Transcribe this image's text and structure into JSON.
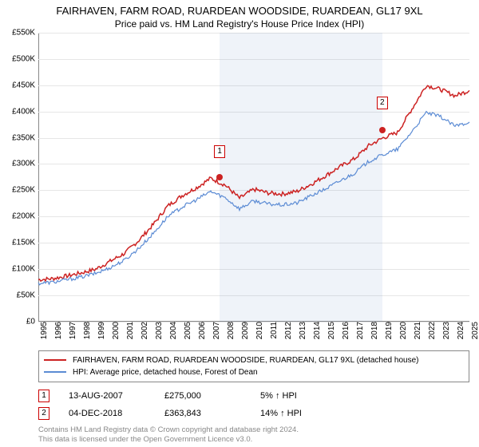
{
  "title_line1": "FAIRHAVEN, FARM ROAD, RUARDEAN WOODSIDE, RUARDEAN, GL17 9XL",
  "title_line2": "Price paid vs. HM Land Registry's House Price Index (HPI)",
  "chart": {
    "type": "line",
    "ylim": [
      0,
      550000
    ],
    "ytick_step": 50000,
    "y_prefix": "£",
    "y_suffix_k": "K",
    "years": [
      1995,
      1996,
      1997,
      1998,
      1999,
      2000,
      2001,
      2002,
      2003,
      2004,
      2005,
      2006,
      2007,
      2008,
      2009,
      2010,
      2011,
      2012,
      2013,
      2014,
      2015,
      2016,
      2017,
      2018,
      2019,
      2020,
      2021,
      2022,
      2023,
      2024,
      2025
    ],
    "grid_color": "#e6e6e6",
    "background_color": "#ffffff",
    "shade_band": {
      "start_year": 2007.62,
      "end_year": 2018.93,
      "color": "rgba(100,140,200,0.10)"
    },
    "series": [
      {
        "name": "FAIRHAVEN, FARM ROAD, RUARDEAN WOODSIDE, RUARDEAN, GL17 9XL (detached house)",
        "color": "#cc2222",
        "line_width": 1.5,
        "values_by_year": {
          "1995": 80000,
          "1996": 82000,
          "1997": 87000,
          "1998": 93000,
          "1999": 100000,
          "2000": 115000,
          "2001": 130000,
          "2002": 155000,
          "2003": 185000,
          "2004": 220000,
          "2005": 240000,
          "2006": 255000,
          "2007": 273000,
          "2008": 260000,
          "2009": 235000,
          "2010": 252000,
          "2011": 245000,
          "2012": 243000,
          "2013": 248000,
          "2014": 262000,
          "2015": 278000,
          "2016": 295000,
          "2017": 310000,
          "2018": 335000,
          "2019": 350000,
          "2020": 360000,
          "2021": 405000,
          "2022": 450000,
          "2023": 442000,
          "2024": 430000,
          "2025": 440000
        },
        "jitter": 8000
      },
      {
        "name": "HPI: Average price, detached house, Forest of Dean",
        "color": "#5b8bd4",
        "line_width": 1.2,
        "values_by_year": {
          "1995": 73000,
          "1996": 75000,
          "1997": 80000,
          "1998": 85000,
          "1999": 92000,
          "2000": 103000,
          "2001": 117000,
          "2002": 140000,
          "2003": 168000,
          "2004": 200000,
          "2005": 218000,
          "2006": 232000,
          "2007": 248000,
          "2008": 236000,
          "2009": 215000,
          "2010": 230000,
          "2011": 224000,
          "2012": 222000,
          "2013": 226000,
          "2014": 240000,
          "2015": 253000,
          "2016": 268000,
          "2017": 283000,
          "2018": 305000,
          "2019": 318000,
          "2020": 328000,
          "2021": 362000,
          "2022": 398000,
          "2023": 390000,
          "2024": 372000,
          "2025": 380000
        },
        "jitter": 7000
      }
    ],
    "markers": [
      {
        "id": "1",
        "year": 2007.62,
        "value": 275000,
        "box_offset_y": -32
      },
      {
        "id": "2",
        "year": 2018.93,
        "value": 363843,
        "box_offset_y": -34
      }
    ]
  },
  "legend": [
    {
      "color": "#cc2222",
      "label": "FAIRHAVEN, FARM ROAD, RUARDEAN WOODSIDE, RUARDEAN, GL17 9XL (detached house)"
    },
    {
      "color": "#5b8bd4",
      "label": "HPI: Average price, detached house, Forest of Dean"
    }
  ],
  "marker_table": [
    {
      "id": "1",
      "date": "13-AUG-2007",
      "price": "£275,000",
      "delta": "5% ↑ HPI"
    },
    {
      "id": "2",
      "date": "04-DEC-2018",
      "price": "£363,843",
      "delta": "14% ↑ HPI"
    }
  ],
  "footer_line1": "Contains HM Land Registry data © Crown copyright and database right 2024.",
  "footer_line2": "This data is licensed under the Open Government Licence v3.0."
}
